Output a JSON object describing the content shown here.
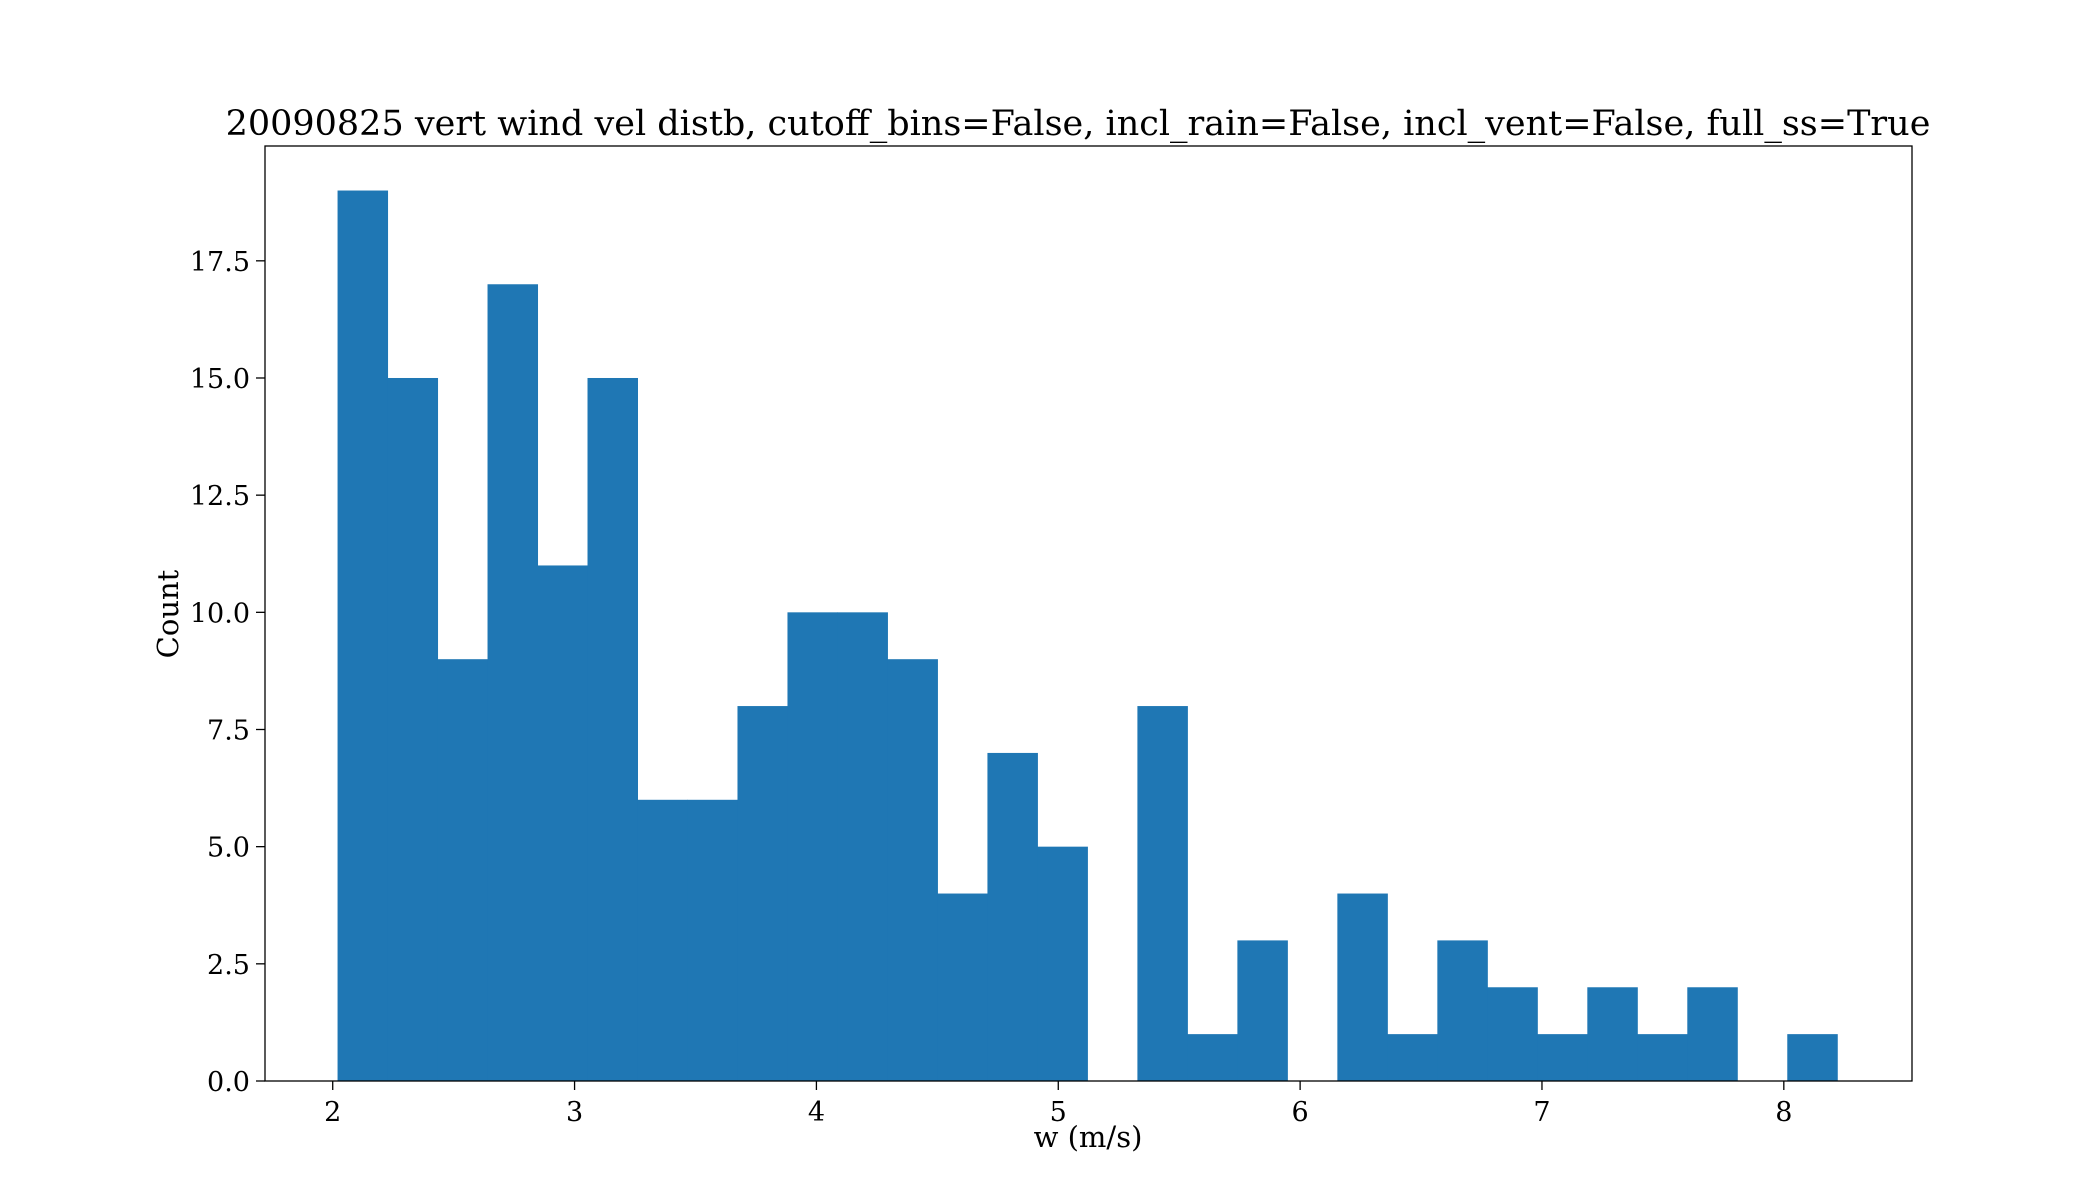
{
  "chart_data": {
    "type": "bar",
    "title": "20090825 vert wind vel distb, cutoff_bins=False, incl_rain=False, incl_vent=False, full_ss=True",
    "xlabel": "w (m/s)",
    "ylabel": "Count",
    "xlim": [
      1.72,
      8.53
    ],
    "ylim": [
      0,
      19.95
    ],
    "grid": false,
    "bar_color": "#1f77b4",
    "x_ticks": [
      2,
      3,
      4,
      5,
      6,
      7,
      8
    ],
    "y_ticks": [
      0.0,
      2.5,
      5.0,
      7.5,
      10.0,
      12.5,
      15.0,
      17.5
    ],
    "y_tick_labels": [
      "0.0",
      "2.5",
      "5.0",
      "7.5",
      "10.0",
      "12.5",
      "15.0",
      "17.5"
    ],
    "bin_start": 2.02,
    "bin_width": 0.2067,
    "counts": [
      19,
      15,
      9,
      17,
      11,
      15,
      6,
      6,
      8,
      10,
      10,
      9,
      4,
      7,
      5,
      0,
      8,
      1,
      3,
      0,
      4,
      1,
      3,
      2,
      1,
      2,
      1,
      2,
      0,
      1
    ]
  }
}
